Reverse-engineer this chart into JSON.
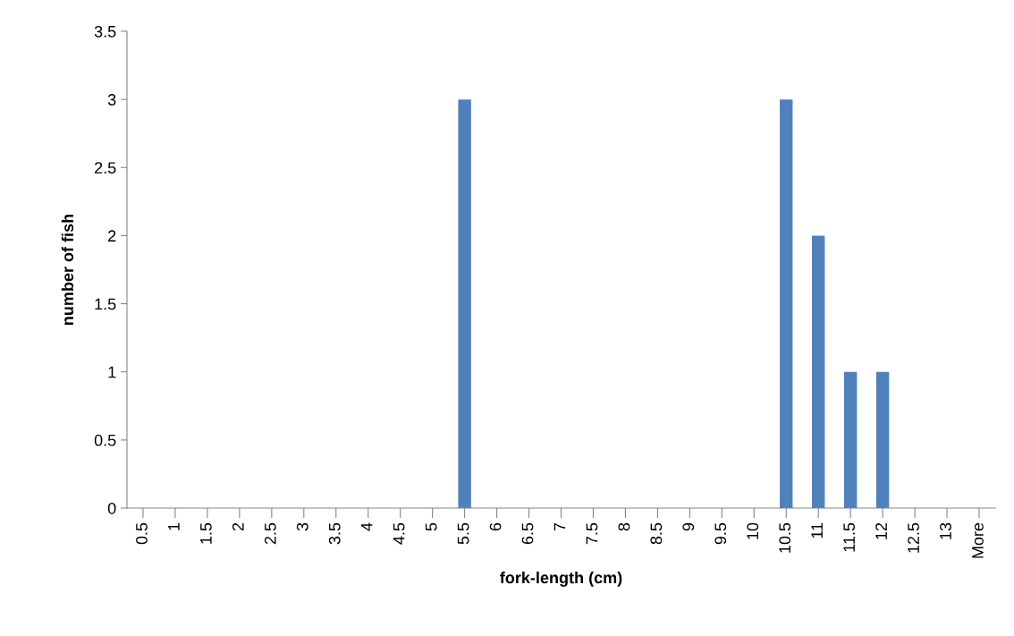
{
  "chart_data": {
    "type": "bar",
    "xlabel": "fork-length (cm)",
    "ylabel": "number of fish",
    "categories": [
      "0.5",
      "1",
      "1.5",
      "2",
      "2.5",
      "3",
      "3.5",
      "4",
      "4.5",
      "5",
      "5.5",
      "6",
      "6.5",
      "7",
      "7.5",
      "8",
      "8.5",
      "9",
      "9.5",
      "10",
      "10.5",
      "11",
      "11.5",
      "12",
      "12.5",
      "13",
      "More"
    ],
    "values": [
      0,
      0,
      0,
      0,
      0,
      0,
      0,
      0,
      0,
      0,
      3,
      0,
      0,
      0,
      0,
      0,
      0,
      0,
      0,
      0,
      3,
      2,
      1,
      1,
      0,
      0,
      0
    ],
    "color": "#4f81bd",
    "ylim": [
      0,
      3.5
    ],
    "yticks": [
      0,
      0.5,
      1,
      1.5,
      2,
      2.5,
      3,
      3.5
    ]
  }
}
